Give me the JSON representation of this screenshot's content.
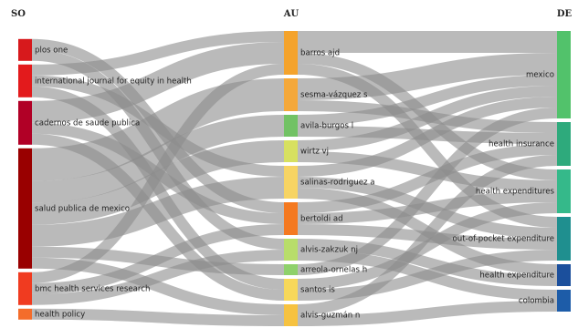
{
  "chart_data": {
    "type": "sankey",
    "columns": [
      "SO",
      "AU",
      "DE"
    ],
    "nodes": [
      {
        "id": "plos-one",
        "label": "plos one",
        "column": 0,
        "color": "#d7191c"
      },
      {
        "id": "ijeh",
        "label": "international journal for equity in health",
        "column": 0,
        "color": "#e31a1c"
      },
      {
        "id": "csp",
        "label": "cadernos de saude publica",
        "column": 0,
        "color": "#b10026"
      },
      {
        "id": "spm",
        "label": "salud publica de mexico",
        "column": 0,
        "color": "#990000"
      },
      {
        "id": "bmc",
        "label": "bmc health services research",
        "column": 0,
        "color": "#f03b20"
      },
      {
        "id": "hp",
        "label": "health policy",
        "column": 0,
        "color": "#f46d2b"
      },
      {
        "id": "barros",
        "label": "barros ajd",
        "column": 1,
        "color": "#f4a32c"
      },
      {
        "id": "sesma",
        "label": "sesma-vázquez s",
        "column": 1,
        "color": "#f4a83a"
      },
      {
        "id": "avila",
        "label": "avila-burgos l",
        "column": 1,
        "color": "#72c264"
      },
      {
        "id": "wirtz",
        "label": "wirtz vj",
        "column": 1,
        "color": "#d7e060"
      },
      {
        "id": "salinas",
        "label": "salinas-rodriguez a",
        "column": 1,
        "color": "#f7d463"
      },
      {
        "id": "bertoldi",
        "label": "bertoldi ad",
        "column": 1,
        "color": "#f47920"
      },
      {
        "id": "alvisz",
        "label": "alvis-zakzuk nj",
        "column": 1,
        "color": "#b8dd6a"
      },
      {
        "id": "arreola",
        "label": "arreola-ornelas h",
        "column": 1,
        "color": "#8fd16b"
      },
      {
        "id": "santos",
        "label": "santos is",
        "column": 1,
        "color": "#f7d85a"
      },
      {
        "id": "alvisg",
        "label": "alvis-guzmán n",
        "column": 1,
        "color": "#f6c240"
      },
      {
        "id": "mexico",
        "label": "mexico",
        "column": 2,
        "color": "#52c26b"
      },
      {
        "id": "hi",
        "label": "health insurance",
        "column": 2,
        "color": "#2eaa7c"
      },
      {
        "id": "he",
        "label": "health expenditures",
        "column": 2,
        "color": "#35b98a"
      },
      {
        "id": "oop",
        "label": "out-of-pocket expenditure",
        "column": 2,
        "color": "#1f8f8f"
      },
      {
        "id": "hexp",
        "label": "health expenditure",
        "column": 2,
        "color": "#1b4f9c"
      },
      {
        "id": "colombia",
        "label": "colombia",
        "column": 2,
        "color": "#1d5ca8"
      }
    ],
    "links": [
      {
        "source": "plos-one",
        "target": "bertoldi",
        "value": 1
      },
      {
        "source": "plos-one",
        "target": "alvisz",
        "value": 1
      },
      {
        "source": "ijeh",
        "target": "barros",
        "value": 1
      },
      {
        "source": "ijeh",
        "target": "salinas",
        "value": 1
      },
      {
        "source": "ijeh",
        "target": "santos",
        "value": 1
      },
      {
        "source": "csp",
        "target": "barros",
        "value": 2
      },
      {
        "source": "csp",
        "target": "bertoldi",
        "value": 1
      },
      {
        "source": "csp",
        "target": "santos",
        "value": 1
      },
      {
        "source": "spm",
        "target": "sesma",
        "value": 3
      },
      {
        "source": "spm",
        "target": "avila",
        "value": 2
      },
      {
        "source": "spm",
        "target": "wirtz",
        "value": 2
      },
      {
        "source": "spm",
        "target": "salinas",
        "value": 2
      },
      {
        "source": "spm",
        "target": "arreola",
        "value": 1
      },
      {
        "source": "spm",
        "target": "alvisg",
        "value": 1
      },
      {
        "source": "bmc",
        "target": "barros",
        "value": 1
      },
      {
        "source": "bmc",
        "target": "bertoldi",
        "value": 1
      },
      {
        "source": "bmc",
        "target": "alvisz",
        "value": 1
      },
      {
        "source": "hp",
        "target": "alvisg",
        "value": 1
      },
      {
        "source": "barros",
        "target": "mexico",
        "value": 2
      },
      {
        "source": "barros",
        "target": "he",
        "value": 1
      },
      {
        "source": "barros",
        "target": "oop",
        "value": 1
      },
      {
        "source": "sesma",
        "target": "mexico",
        "value": 2
      },
      {
        "source": "sesma",
        "target": "hi",
        "value": 1
      },
      {
        "source": "avila",
        "target": "mexico",
        "value": 1
      },
      {
        "source": "avila",
        "target": "hi",
        "value": 1
      },
      {
        "source": "wirtz",
        "target": "mexico",
        "value": 1
      },
      {
        "source": "wirtz",
        "target": "he",
        "value": 1
      },
      {
        "source": "salinas",
        "target": "mexico",
        "value": 1
      },
      {
        "source": "salinas",
        "target": "oop",
        "value": 1
      },
      {
        "source": "salinas",
        "target": "hexp",
        "value": 1
      },
      {
        "source": "bertoldi",
        "target": "hi",
        "value": 1
      },
      {
        "source": "bertoldi",
        "target": "he",
        "value": 1
      },
      {
        "source": "bertoldi",
        "target": "oop",
        "value": 1
      },
      {
        "source": "alvisz",
        "target": "colombia",
        "value": 1
      },
      {
        "source": "alvisz",
        "target": "hexp",
        "value": 1
      },
      {
        "source": "arreola",
        "target": "mexico",
        "value": 1
      },
      {
        "source": "santos",
        "target": "he",
        "value": 1
      },
      {
        "source": "santos",
        "target": "oop",
        "value": 1
      },
      {
        "source": "alvisg",
        "target": "colombia",
        "value": 1
      },
      {
        "source": "alvisg",
        "target": "hi",
        "value": 1
      }
    ]
  }
}
